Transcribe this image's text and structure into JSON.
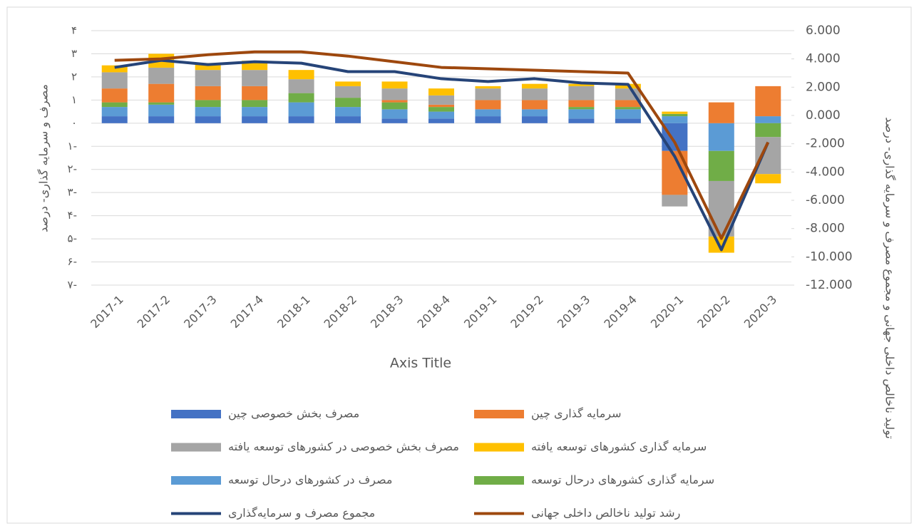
{
  "chart_data": {
    "type": "bar",
    "x_axis_title": "Axis Title",
    "y_axis_title": "مصرف و سرمایه گذاری- درصد",
    "y2_axis_title": "تولید ناخالص داخلی جهانی و مجموع مصرف و سرمایه گذاری- درصد",
    "categories": [
      "2017-1",
      "2017-2",
      "2017-3",
      "2017-4",
      "2018-1",
      "2018-2",
      "2018-3",
      "2018-4",
      "2019-1",
      "2019-2",
      "2019-3",
      "2019-4",
      "2020-1",
      "2020-2",
      "2020-3"
    ],
    "stacked": true,
    "grid": true,
    "ylim": [
      -7,
      4
    ],
    "yticks": [
      {
        "value": 4,
        "label": "۴"
      },
      {
        "value": 3,
        "label": "۳"
      },
      {
        "value": 2,
        "label": "۲"
      },
      {
        "value": 1,
        "label": "۱"
      },
      {
        "value": 0,
        "label": "۰"
      },
      {
        "value": -1,
        "label": "۱-"
      },
      {
        "value": -2,
        "label": "۲-"
      },
      {
        "value": -3,
        "label": "۳-"
      },
      {
        "value": -4,
        "label": "۴-"
      },
      {
        "value": -5,
        "label": "۵-"
      },
      {
        "value": -6,
        "label": "۶-"
      },
      {
        "value": -7,
        "label": "۷-"
      }
    ],
    "y2lim": [
      -12,
      6
    ],
    "y2ticks": [
      {
        "value": 6,
        "label": "6.000"
      },
      {
        "value": 4,
        "label": "4.000"
      },
      {
        "value": 2,
        "label": "2.000"
      },
      {
        "value": 0,
        "label": "0.000"
      },
      {
        "value": -2,
        "label": "-2.000"
      },
      {
        "value": -4,
        "label": "-4.000"
      },
      {
        "value": -6,
        "label": "-6.000"
      },
      {
        "value": -8,
        "label": "-8.000"
      },
      {
        "value": -10,
        "label": "-10.000"
      },
      {
        "value": -12,
        "label": "-12.000"
      }
    ],
    "series": [
      {
        "name": "مصرف بخش خصوصی چین",
        "color": "#4472c4",
        "values": [
          0.3,
          0.3,
          0.3,
          0.3,
          0.3,
          0.3,
          0.2,
          0.2,
          0.3,
          0.3,
          0.2,
          0.2,
          -1.2,
          0,
          0
        ]
      },
      {
        "name": "مصرف در کشورهای درحال توسعه",
        "color": "#5b9bd5",
        "values": [
          0.4,
          0.5,
          0.4,
          0.4,
          0.6,
          0.4,
          0.4,
          0.3,
          0.3,
          0.3,
          0.4,
          0.4,
          0.3,
          -1.2,
          0.3
        ]
      },
      {
        "name": "سرمایه گذاری کشورهای درحال توسعه",
        "color": "#70ad47",
        "values": [
          0.2,
          0.1,
          0.3,
          0.3,
          0.4,
          0.4,
          0.3,
          0.2,
          0,
          0,
          0.1,
          0.1,
          0.1,
          -1.3,
          -0.6
        ]
      },
      {
        "name": "سرمایه گذاری چین",
        "color": "#ed7d31",
        "values": [
          0.6,
          0.8,
          0.6,
          0.6,
          0,
          0,
          0.1,
          0.1,
          0.4,
          0.4,
          0.3,
          0.3,
          -1.9,
          0.9,
          1.3
        ]
      },
      {
        "name": "مصرف  بخش خصوصی در کشورهای توسعه یافته",
        "color": "#a5a5a5",
        "values": [
          0.7,
          0.7,
          0.7,
          0.7,
          0.6,
          0.5,
          0.5,
          0.4,
          0.5,
          0.5,
          0.6,
          0.5,
          -0.5,
          -2.4,
          -1.6
        ]
      },
      {
        "name": "سرمایه گذاری کشورهای توسعه یافته",
        "color": "#ffc000",
        "values": [
          0.3,
          0.6,
          0.3,
          0.4,
          0.4,
          0.2,
          0.3,
          0.3,
          0.1,
          0.2,
          0.1,
          0.2,
          0.1,
          -0.7,
          -0.4
        ]
      },
      {
        "name": "مجموع مصرف و سرمایه‌گذاری",
        "color": "#264478",
        "type": "line",
        "axis": "y2",
        "values": [
          3.4,
          3.9,
          3.6,
          3.8,
          3.7,
          3.1,
          3.1,
          2.6,
          2.4,
          2.6,
          2.3,
          2.2,
          -2.9,
          -9.5,
          -1.9
        ]
      },
      {
        "name": "رشد تولید ناخالص داخلی جهانی",
        "color": "#9e480e",
        "type": "line",
        "axis": "y2",
        "values": [
          3.9,
          4.0,
          4.3,
          4.5,
          4.5,
          4.2,
          3.8,
          3.4,
          3.3,
          3.2,
          3.1,
          3.0,
          -1.9,
          -8.7,
          -1.9
        ]
      }
    ]
  }
}
